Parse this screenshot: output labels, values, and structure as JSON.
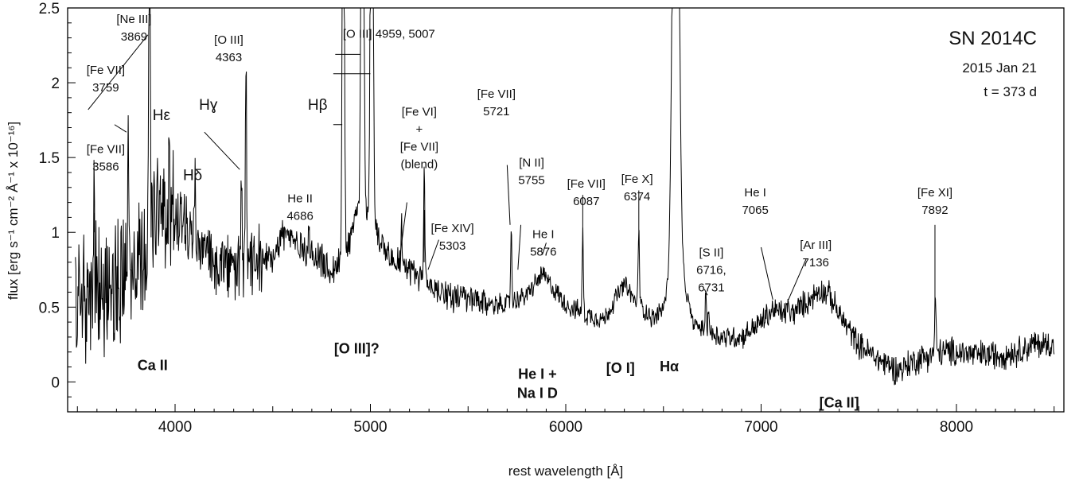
{
  "chart_data": {
    "type": "line",
    "title": "SN 2014C",
    "subtitle_lines": [
      "2015 Jan 21",
      "t = 373 d"
    ],
    "xlabel": "rest wavelength [Å]",
    "ylabel": "flux [erg s⁻¹ cm⁻² Å⁻¹ x 10⁻¹⁶]",
    "xlim": [
      3450,
      8550
    ],
    "ylim": [
      -0.2,
      2.5
    ],
    "x_ticks": [
      4000,
      5000,
      6000,
      7000,
      8000
    ],
    "x_tick_labels": [
      "4000",
      "5000",
      "6000",
      "7000",
      "8000"
    ],
    "y_ticks": [
      0,
      0.5,
      1,
      1.5,
      2,
      2.5
    ],
    "y_tick_labels": [
      "0",
      "0.5",
      "1",
      "1.5",
      "2",
      "2.5"
    ],
    "grid": false,
    "legend": "none",
    "line_color": "#000000",
    "series": [
      {
        "continuum": [
          [
            3500,
            0.55
          ],
          [
            3600,
            0.6
          ],
          [
            3700,
            0.65
          ],
          [
            3800,
            0.75
          ],
          [
            3880,
            1.0
          ],
          [
            3950,
            1.15
          ],
          [
            4000,
            1.1
          ],
          [
            4100,
            0.95
          ],
          [
            4200,
            0.8
          ],
          [
            4300,
            0.75
          ],
          [
            4400,
            0.78
          ],
          [
            4500,
            0.85
          ],
          [
            4550,
            1.0
          ],
          [
            4600,
            0.95
          ],
          [
            4700,
            0.85
          ],
          [
            4800,
            0.75
          ],
          [
            4850,
            0.8
          ],
          [
            4900,
            1.0
          ],
          [
            4950,
            1.2
          ],
          [
            5000,
            1.1
          ],
          [
            5050,
            0.95
          ],
          [
            5100,
            0.85
          ],
          [
            5200,
            0.75
          ],
          [
            5300,
            0.65
          ],
          [
            5400,
            0.58
          ],
          [
            5500,
            0.55
          ],
          [
            5600,
            0.52
          ],
          [
            5700,
            0.52
          ],
          [
            5800,
            0.58
          ],
          [
            5880,
            0.72
          ],
          [
            5950,
            0.6
          ],
          [
            6000,
            0.52
          ],
          [
            6100,
            0.45
          ],
          [
            6200,
            0.42
          ],
          [
            6250,
            0.55
          ],
          [
            6300,
            0.65
          ],
          [
            6350,
            0.55
          ],
          [
            6450,
            0.42
          ],
          [
            6500,
            0.5
          ],
          [
            6550,
            0.8
          ],
          [
            6600,
            0.7
          ],
          [
            6650,
            0.4
          ],
          [
            6700,
            0.35
          ],
          [
            6800,
            0.3
          ],
          [
            6900,
            0.3
          ],
          [
            7000,
            0.4
          ],
          [
            7060,
            0.48
          ],
          [
            7150,
            0.45
          ],
          [
            7250,
            0.55
          ],
          [
            7300,
            0.62
          ],
          [
            7350,
            0.58
          ],
          [
            7400,
            0.45
          ],
          [
            7500,
            0.25
          ],
          [
            7600,
            0.15
          ],
          [
            7700,
            0.08
          ],
          [
            7800,
            0.15
          ],
          [
            7900,
            0.2
          ],
          [
            8000,
            0.2
          ],
          [
            8100,
            0.18
          ],
          [
            8200,
            0.18
          ],
          [
            8300,
            0.2
          ],
          [
            8400,
            0.25
          ],
          [
            8500,
            0.25
          ]
        ],
        "noise": [
          [
            3450,
            4000,
            0.45
          ],
          [
            4000,
            4450,
            0.22
          ],
          [
            4450,
            4900,
            0.12
          ],
          [
            4900,
            5600,
            0.1
          ],
          [
            5600,
            6500,
            0.07
          ],
          [
            6500,
            6700,
            0.05
          ],
          [
            6700,
            7000,
            0.08
          ],
          [
            7000,
            7600,
            0.09
          ],
          [
            7600,
            8550,
            0.1
          ]
        ],
        "lines": [
          [
            3586,
            3,
            0.55
          ],
          [
            3759,
            3,
            0.9
          ],
          [
            3869,
            4,
            2.3
          ],
          [
            3970,
            3,
            0.45
          ],
          [
            4102,
            3,
            0.4
          ],
          [
            4340,
            3,
            0.6
          ],
          [
            4363,
            3,
            1.4
          ],
          [
            4686,
            4,
            0.15
          ],
          [
            4861,
            5,
            3.5
          ],
          [
            4959,
            6,
            4.5
          ],
          [
            5007,
            6,
            4.5
          ],
          [
            5159,
            3,
            0.3
          ],
          [
            5276,
            3,
            0.8
          ],
          [
            5721,
            3,
            0.5
          ],
          [
            6087,
            3,
            0.55
          ],
          [
            6374,
            3,
            0.55
          ],
          [
            6563,
            14,
            5.0
          ],
          [
            6716,
            3,
            0.25
          ],
          [
            6731,
            3,
            0.2
          ],
          [
            7136,
            3,
            0.08
          ],
          [
            7892,
            3,
            0.4
          ]
        ],
        "seed": 20140121
      }
    ],
    "annotations": [
      {
        "lines": [
          "[Ne III]",
          "3869"
        ],
        "text_x": 3790,
        "text_y": 2.4
      },
      {
        "lines": [
          "[Fe VII]",
          "3759"
        ],
        "text_x": 3645,
        "text_y": 2.06
      },
      {
        "lines": [
          "[Fe VII]",
          "3586"
        ],
        "text_x": 3645,
        "text_y": 1.53
      },
      {
        "lines": [
          "Hε"
        ],
        "text_x": 3930,
        "text_y": 1.75
      },
      {
        "lines": [
          "Hδ"
        ],
        "text_x": 4090,
        "text_y": 1.35
      },
      {
        "lines": [
          "Hɣ"
        ],
        "text_x": 4170,
        "text_y": 1.82
      },
      {
        "lines": [
          "[O III]",
          "4363"
        ],
        "text_x": 4275,
        "text_y": 2.26
      },
      {
        "lines": [
          "Hβ"
        ],
        "text_x": 4730,
        "text_y": 1.82
      },
      {
        "lines": [
          "[O III] 4959, 5007"
        ],
        "text_x": 5095,
        "text_y": 2.3
      },
      {
        "lines": [
          "He II",
          "4686"
        ],
        "text_x": 4640,
        "text_y": 1.2
      },
      {
        "lines": [
          "[Fe VI]",
          "+",
          "[Fe VII]",
          "(blend)"
        ],
        "text_x": 5250,
        "text_y": 1.78
      },
      {
        "lines": [
          "[Fe VII]",
          "5721"
        ],
        "text_x": 5645,
        "text_y": 1.9
      },
      {
        "lines": [
          "[Fe XIV]",
          "5303"
        ],
        "text_x": 5420,
        "text_y": 1.0
      },
      {
        "lines": [
          "[N II]",
          "5755"
        ],
        "text_x": 5825,
        "text_y": 1.44
      },
      {
        "lines": [
          "He I",
          "5876"
        ],
        "text_x": 5885,
        "text_y": 0.96
      },
      {
        "lines": [
          "[Fe VII]",
          "6087"
        ],
        "text_x": 6105,
        "text_y": 1.3
      },
      {
        "lines": [
          "[Fe X]",
          "6374"
        ],
        "text_x": 6365,
        "text_y": 1.33
      },
      {
        "lines": [
          "[S II]",
          "6716,",
          "6731"
        ],
        "text_x": 6745,
        "text_y": 0.84
      },
      {
        "lines": [
          "He I",
          "7065"
        ],
        "text_x": 6970,
        "text_y": 1.24
      },
      {
        "lines": [
          "[Ar III]",
          "7136"
        ],
        "text_x": 7280,
        "text_y": 0.89
      },
      {
        "lines": [
          "[Fe XI]",
          "7892"
        ],
        "text_x": 7890,
        "text_y": 1.24
      },
      {
        "lines": [
          "Ca II"
        ],
        "bold": true,
        "text_x": 3885,
        "text_y": 0.08
      },
      {
        "lines": [
          "[O III]?"
        ],
        "bold": true,
        "text_x": 4930,
        "text_y": 0.19
      },
      {
        "lines": [
          "He I +",
          "Na I D"
        ],
        "bold": true,
        "text_x": 5855,
        "text_y": 0.02
      },
      {
        "lines": [
          "[O I]"
        ],
        "bold": true,
        "text_x": 6280,
        "text_y": 0.06
      },
      {
        "lines": [
          "Hα"
        ],
        "bold": true,
        "text_x": 6530,
        "text_y": 0.07
      },
      {
        "lines": [
          "[Ca II]"
        ],
        "bold": true,
        "text_x": 7400,
        "text_y": -0.17
      }
    ],
    "leader_lines": [
      [
        3555,
        1.82,
        3861,
        2.32
      ],
      [
        3690,
        1.72,
        3751,
        1.67
      ],
      [
        3586,
        1.13,
        3586,
        1.0
      ],
      [
        4150,
        1.67,
        4331,
        1.42
      ],
      [
        4810,
        1.72,
        4856,
        1.72
      ],
      [
        4820,
        2.19,
        4948,
        2.19
      ],
      [
        4810,
        2.06,
        5000,
        2.06
      ],
      [
        5187,
        1.2,
        5149,
        0.82
      ],
      [
        5275,
        1.15,
        5275,
        0.8
      ],
      [
        5350,
        0.95,
        5295,
        0.75
      ],
      [
        5700,
        1.45,
        5715,
        1.05
      ],
      [
        5770,
        1.05,
        5755,
        0.75
      ],
      [
        5900,
        0.93,
        5880,
        0.85
      ],
      [
        6087,
        1.25,
        6087,
        0.95
      ],
      [
        6374,
        1.28,
        6374,
        0.95
      ],
      [
        6710,
        0.62,
        6725,
        0.58
      ],
      [
        7000,
        0.9,
        7060,
        0.55
      ],
      [
        7230,
        0.82,
        7140,
        0.55
      ],
      [
        7890,
        1.05,
        7890,
        0.55
      ]
    ]
  }
}
